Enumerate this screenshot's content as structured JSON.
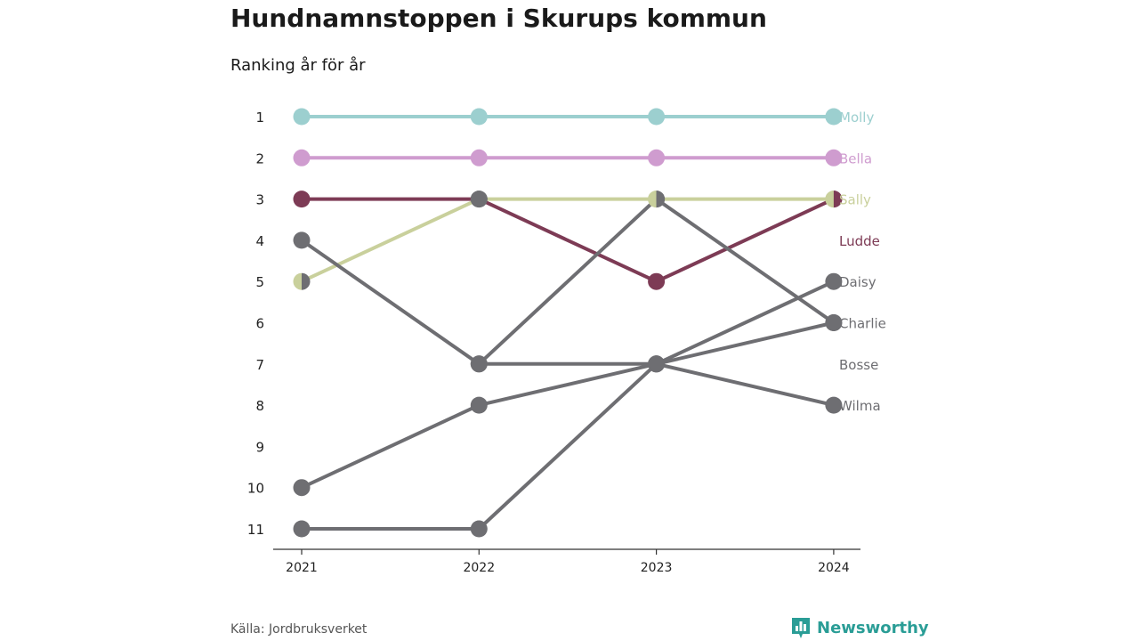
{
  "title": "Hundnamnstoppen i Skurups kommun",
  "subtitle": "Ranking år för år",
  "source": "Källa: Jordbruksverket",
  "brand": {
    "name": "Newsworthy",
    "icon": "bar-chart-logo-icon",
    "color": "#2a9d96"
  },
  "chart_data": {
    "type": "line",
    "x": [
      "2021",
      "2022",
      "2023",
      "2024"
    ],
    "yticks": [
      "1",
      "2",
      "3",
      "4",
      "5",
      "6",
      "7",
      "8",
      "9",
      "10",
      "11"
    ],
    "ylim": [
      1,
      11
    ],
    "y_inverted": true,
    "grid": false,
    "legend": "direct labels at right",
    "series": [
      {
        "name": "Molly",
        "color": "#9ccfcf",
        "values": [
          1,
          1,
          1,
          1
        ]
      },
      {
        "name": "Bella",
        "color": "#cf9ccf",
        "values": [
          2,
          2,
          2,
          2
        ]
      },
      {
        "name": "Sally",
        "color": "#c9d09c",
        "values": [
          5,
          3,
          3,
          3
        ]
      },
      {
        "name": "Ludde",
        "color": "#7d3b55",
        "values": [
          3,
          3,
          5,
          3
        ]
      },
      {
        "name": "Daisy",
        "color": "#6e6e72",
        "values": [
          11,
          11,
          7,
          5
        ]
      },
      {
        "name": "Charlie",
        "color": "#6e6e72",
        "values": [
          4,
          7,
          3,
          6
        ]
      },
      {
        "name": "Bosse",
        "color": "#6e6e72",
        "values": [
          null,
          7,
          7,
          6
        ]
      },
      {
        "name": "Wilma",
        "color": "#6e6e72",
        "values": [
          10,
          8,
          7,
          8
        ]
      }
    ],
    "point_colors": [
      [
        "#9ccfcf",
        "#9ccfcf",
        "#9ccfcf",
        "#9ccfcf"
      ],
      [
        "#cf9ccf",
        "#cf9ccf",
        "#cf9ccf",
        "#cf9ccf"
      ],
      [
        "#c9d09c|#6e6e72",
        "#6e6e72",
        "#c9d09c|#6e6e72",
        "#c9d09c|#7d3b55"
      ],
      [
        "#7d3b55",
        "#6e6e72",
        "#7d3b55",
        "#c9d09c|#7d3b55"
      ],
      [
        "#6e6e72",
        "#6e6e72",
        "#6e6e72",
        "#6e6e72"
      ],
      [
        "#6e6e72",
        "#6e6e72",
        "#c9d09c|#6e6e72",
        "#6e6e72"
      ],
      [
        null,
        "#6e6e72",
        "#6e6e72",
        "#6e6e72"
      ],
      [
        "#6e6e72",
        "#6e6e72",
        "#6e6e72",
        "#6e6e72"
      ]
    ],
    "label_ranks": {
      "Molly": 1,
      "Bella": 2,
      "Sally": 3,
      "Ludde": 4,
      "Daisy": 5,
      "Charlie": 6,
      "Bosse": 7,
      "Wilma": 8
    }
  }
}
